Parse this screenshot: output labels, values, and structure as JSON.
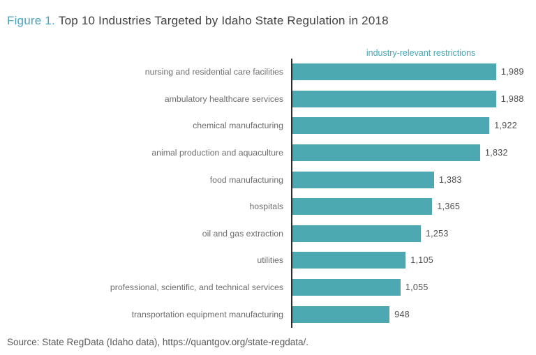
{
  "figure": {
    "label": "Figure 1.",
    "title": "Top 10 Industries Targeted by Idaho State Regulation in 2018"
  },
  "chart_data": {
    "type": "bar",
    "orientation": "horizontal",
    "title": "Top 10 Industries Targeted by Idaho State Regulation in 2018",
    "value_axis_label": "industry-relevant restrictions",
    "categories": [
      "nursing and residential care facilities",
      "ambulatory healthcare services",
      "chemical manufacturing",
      "animal production and aquaculture",
      "food manufacturing",
      "hospitals",
      "oil and gas extraction",
      "utilities",
      "professional, scientific, and technical services",
      "transportation equipment manufacturing"
    ],
    "values": [
      1989,
      1988,
      1922,
      1832,
      1383,
      1365,
      1253,
      1105,
      1055,
      948
    ],
    "value_labels": [
      "1,989",
      "1,988",
      "1,922",
      "1,832",
      "1,383",
      "1,365",
      "1,253",
      "1,105",
      "1,055",
      "948"
    ],
    "xlim": [
      0,
      1989
    ],
    "grid": false,
    "legend_position": "none",
    "bar_color": "#4CA9B2"
  },
  "source": "Source: State RegData (Idaho data), https://quantgov.org/state-regdata/.",
  "colors": {
    "figure_label": "#4BA3C2",
    "title_text": "#414042",
    "header_label": "#45A6B4",
    "bar": "#4CA9B2",
    "axis": "#2B2B2C",
    "category_label": "#6D6E70",
    "value_label": "#4D4E50",
    "source_text": "#58595B",
    "background": "#FFFFFF"
  }
}
